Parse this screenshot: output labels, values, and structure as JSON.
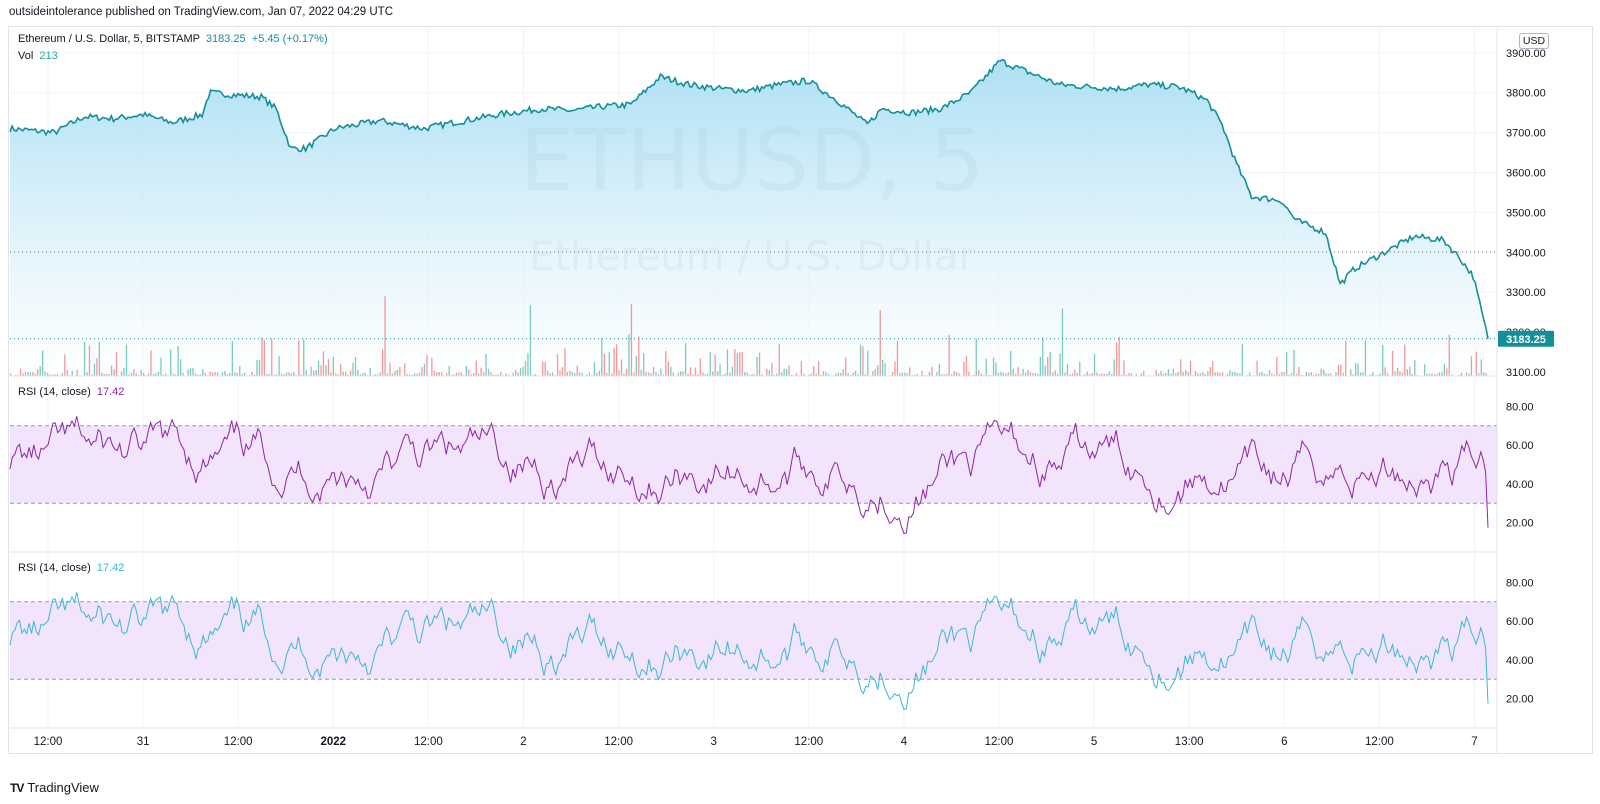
{
  "publisher_line": "outsideintolerance published on TradingView.com, Jan 07, 2022 04:29 UTC",
  "footer": {
    "brand": "TradingView"
  },
  "colors": {
    "price_line": "#138f9a",
    "area_top": "#9fdaf2",
    "area_bottom": "#ffffff",
    "vol_up": "#26a69a",
    "vol_down": "#ef5350",
    "rsi1": "#8e24aa",
    "rsi2": "#3db6da",
    "rsi_band": "#f1e4fb",
    "watermark": "#9aa6b2",
    "price_badge": "#138f9a"
  },
  "main_legend": {
    "symbol": "Ethereum / U.S. Dollar, 5, BITSTAMP",
    "last": "3183.25",
    "change": "+5.45 (+0.17%)",
    "vol_label": "Vol",
    "vol_value": "213"
  },
  "watermark": {
    "line1": "ETHUSD, 5",
    "line2": "Ethereum / U.S. Dollar"
  },
  "price_axis": {
    "currency": "USD",
    "ticks": [
      "3900.00",
      "3800.00",
      "3700.00",
      "3600.00",
      "3500.00",
      "3400.00",
      "3300.00",
      "3200.00",
      "3100.00"
    ],
    "current_price": "3183.25"
  },
  "rsi_panes": [
    {
      "label": "RSI (14, close)",
      "value": "17.42",
      "ticks": [
        "80.00",
        "60.00",
        "40.00",
        "20.00"
      ],
      "upper": 70,
      "lower": 30
    },
    {
      "label": "RSI (14, close)",
      "value": "17.42",
      "ticks": [
        "80.00",
        "60.00",
        "40.00",
        "20.00"
      ],
      "upper": 70,
      "lower": 30
    }
  ],
  "time_axis": [
    "12:00",
    "31",
    "12:00",
    "2022",
    "12:00",
    "2",
    "12:00",
    "3",
    "12:00",
    "4",
    "12:00",
    "5",
    "13:00",
    "6",
    "12:00",
    "7"
  ],
  "chart_data": {
    "type": "line",
    "title": "Ethereum / U.S. Dollar, 5, BITSTAMP",
    "ylim": [
      3100,
      3900
    ],
    "price_keypoints": [
      [
        0,
        3710
      ],
      [
        0.03,
        3700
      ],
      [
        0.05,
        3740
      ],
      [
        0.07,
        3735
      ],
      [
        0.09,
        3745
      ],
      [
        0.11,
        3725
      ],
      [
        0.13,
        3745
      ],
      [
        0.135,
        3800
      ],
      [
        0.15,
        3795
      ],
      [
        0.17,
        3790
      ],
      [
        0.18,
        3760
      ],
      [
        0.19,
        3660
      ],
      [
        0.2,
        3660
      ],
      [
        0.22,
        3710
      ],
      [
        0.25,
        3730
      ],
      [
        0.28,
        3710
      ],
      [
        0.3,
        3725
      ],
      [
        0.33,
        3745
      ],
      [
        0.36,
        3760
      ],
      [
        0.38,
        3755
      ],
      [
        0.4,
        3765
      ],
      [
        0.42,
        3770
      ],
      [
        0.44,
        3840
      ],
      [
        0.46,
        3820
      ],
      [
        0.48,
        3810
      ],
      [
        0.5,
        3805
      ],
      [
        0.52,
        3820
      ],
      [
        0.54,
        3830
      ],
      [
        0.56,
        3780
      ],
      [
        0.58,
        3720
      ],
      [
        0.59,
        3760
      ],
      [
        0.61,
        3750
      ],
      [
        0.63,
        3760
      ],
      [
        0.65,
        3800
      ],
      [
        0.67,
        3880
      ],
      [
        0.69,
        3850
      ],
      [
        0.71,
        3820
      ],
      [
        0.73,
        3815
      ],
      [
        0.75,
        3810
      ],
      [
        0.77,
        3820
      ],
      [
        0.79,
        3815
      ],
      [
        0.8,
        3800
      ],
      [
        0.81,
        3780
      ],
      [
        0.82,
        3720
      ],
      [
        0.83,
        3620
      ],
      [
        0.84,
        3540
      ],
      [
        0.86,
        3530
      ],
      [
        0.87,
        3480
      ],
      [
        0.89,
        3450
      ],
      [
        0.9,
        3320
      ],
      [
        0.91,
        3360
      ],
      [
        0.93,
        3400
      ],
      [
        0.95,
        3440
      ],
      [
        0.97,
        3430
      ],
      [
        0.98,
        3390
      ],
      [
        0.99,
        3340
      ],
      [
        1.0,
        3183.25
      ]
    ],
    "rsi": {
      "min": 10,
      "max": 85,
      "last": 17.42,
      "upper": 70,
      "lower": 30
    }
  }
}
